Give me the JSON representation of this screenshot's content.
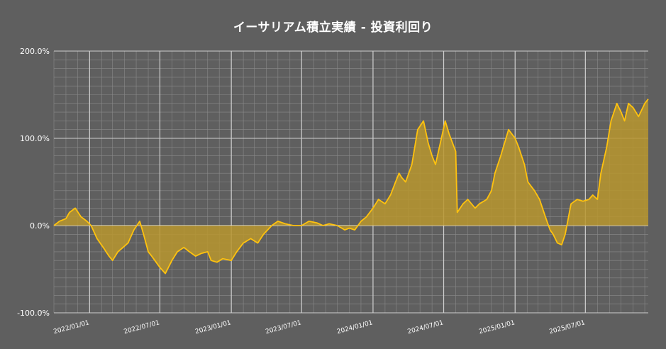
{
  "chart_data": {
    "type": "area",
    "title": "イーサリアム積立実績 - 投資利回り",
    "xlabel": "",
    "ylabel": "",
    "ylim": [
      -100,
      200
    ],
    "y_ticks": [
      {
        "value": 200,
        "label": "200.0%"
      },
      {
        "value": 100,
        "label": "100.0%"
      },
      {
        "value": 0,
        "label": "0.0%"
      },
      {
        "value": -100,
        "label": "-100.0%"
      }
    ],
    "x_ticks": [
      {
        "date": "2022-01-01",
        "label": "2022/01/01"
      },
      {
        "date": "2022-07-01",
        "label": "2022/07/01"
      },
      {
        "date": "2023-01-01",
        "label": "2023/01/01"
      },
      {
        "date": "2023-07-01",
        "label": "2023/07/01"
      },
      {
        "date": "2024-01-01",
        "label": "2024/01/01"
      },
      {
        "date": "2024-07-01",
        "label": "2024/07/01"
      },
      {
        "date": "2025-01-01",
        "label": "2025/01/01"
      },
      {
        "date": "2025-07-01",
        "label": "2025/07/01"
      }
    ],
    "x_range": [
      "2021-10-01",
      "2025-12-10"
    ],
    "grid": true,
    "legend": "none",
    "colors": {
      "background": "#5f5f5f",
      "line": "#ffc20e",
      "fill": "#b8962e",
      "grid": "#8a8a8a",
      "text": "#ffffff"
    },
    "series": [
      {
        "x": [
          "2021-10-01",
          "2021-10-15",
          "2021-11-01",
          "2021-11-10",
          "2021-11-25",
          "2021-12-10",
          "2021-12-25",
          "2022-01-05",
          "2022-01-20",
          "2022-02-05",
          "2022-02-20",
          "2022-03-01",
          "2022-03-15",
          "2022-03-28",
          "2022-04-10",
          "2022-04-25",
          "2022-05-10",
          "2022-05-20",
          "2022-06-01",
          "2022-06-10",
          "2022-06-18",
          "2022-07-01",
          "2022-07-15",
          "2022-08-01",
          "2022-08-15",
          "2022-09-01",
          "2022-09-15",
          "2022-10-01",
          "2022-10-15",
          "2022-11-01",
          "2022-11-10",
          "2022-11-25",
          "2022-12-10",
          "2023-01-01",
          "2023-01-15",
          "2023-02-01",
          "2023-02-20",
          "2023-03-10",
          "2023-03-25",
          "2023-04-15",
          "2023-05-01",
          "2023-05-20",
          "2023-06-10",
          "2023-07-01",
          "2023-07-20",
          "2023-08-10",
          "2023-08-25",
          "2023-09-10",
          "2023-10-01",
          "2023-10-20",
          "2023-11-01",
          "2023-11-15",
          "2023-12-01",
          "2023-12-15",
          "2024-01-01",
          "2024-01-15",
          "2024-02-01",
          "2024-02-15",
          "2024-02-28",
          "2024-03-08",
          "2024-03-15",
          "2024-03-25",
          "2024-04-10",
          "2024-04-25",
          "2024-05-10",
          "2024-05-22",
          "2024-06-01",
          "2024-06-10",
          "2024-06-25",
          "2024-07-05",
          "2024-07-15",
          "2024-08-01",
          "2024-08-05",
          "2024-08-20",
          "2024-09-01",
          "2024-09-20",
          "2024-10-01",
          "2024-10-20",
          "2024-11-01",
          "2024-11-10",
          "2024-11-25",
          "2024-12-05",
          "2024-12-15",
          "2025-01-01",
          "2025-01-10",
          "2025-01-25",
          "2025-02-03",
          "2025-02-20",
          "2025-03-05",
          "2025-03-20",
          "2025-04-01",
          "2025-04-09",
          "2025-04-20",
          "2025-05-01",
          "2025-05-10",
          "2025-05-25",
          "2025-06-10",
          "2025-06-25",
          "2025-07-10",
          "2025-07-20",
          "2025-08-01",
          "2025-08-10",
          "2025-08-25",
          "2025-09-05",
          "2025-09-20",
          "2025-10-01",
          "2025-10-10",
          "2025-10-20",
          "2025-11-01",
          "2025-11-15",
          "2025-12-01",
          "2025-12-10"
        ],
        "values": [
          0,
          5,
          8,
          15,
          20,
          10,
          5,
          0,
          -15,
          -25,
          -35,
          -40,
          -30,
          -25,
          -20,
          -5,
          5,
          -10,
          -30,
          -35,
          -40,
          -48,
          -55,
          -40,
          -30,
          -25,
          -30,
          -35,
          -32,
          -30,
          -40,
          -42,
          -38,
          -40,
          -30,
          -20,
          -15,
          -20,
          -10,
          0,
          5,
          2,
          0,
          0,
          5,
          3,
          0,
          2,
          0,
          -5,
          -3,
          -5,
          5,
          10,
          20,
          30,
          25,
          35,
          50,
          60,
          55,
          50,
          70,
          110,
          120,
          95,
          80,
          70,
          100,
          120,
          105,
          85,
          15,
          25,
          30,
          20,
          25,
          30,
          40,
          60,
          80,
          95,
          110,
          100,
          90,
          70,
          50,
          40,
          30,
          10,
          -5,
          -10,
          -20,
          -22,
          -10,
          25,
          30,
          28,
          30,
          35,
          30,
          60,
          90,
          120,
          140,
          130,
          120,
          140,
          135,
          125,
          140,
          145
        ]
      }
    ]
  }
}
